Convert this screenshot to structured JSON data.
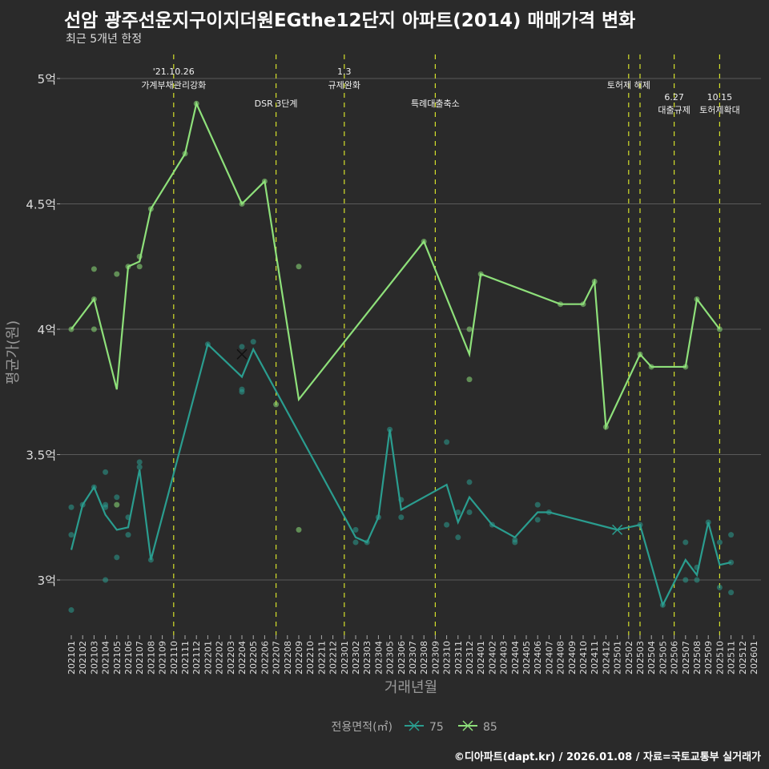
{
  "chart_data": {
    "type": "line",
    "title": "선암 광주선운지구이지더원EGthe12단지 아파트(2014) 매매가격 변화",
    "subtitle": "최근 5개년 한정",
    "xlabel": "거래년월",
    "ylabel": "평균가(원)",
    "caption": "©디아파트(dapt.kr) / 2026.01.08 / 자료=국토교통부 실거래가",
    "legend": {
      "title": "전용면적(㎡)",
      "position": "bottom",
      "entries": [
        "75",
        "85"
      ]
    },
    "colors": {
      "75": "#2a9d8f",
      "85": "#8ee07a",
      "event": "#d4e02a"
    },
    "y_ticks": [
      {
        "v": 3,
        "label": "3억"
      },
      {
        "v": 3.5,
        "label": "3.5억"
      },
      {
        "v": 4,
        "label": "4억"
      },
      {
        "v": 4.5,
        "label": "4.5억"
      },
      {
        "v": 5,
        "label": "5억"
      }
    ],
    "ylim": [
      2.8,
      5.05
    ],
    "x_start": "202101",
    "x_count": 61,
    "events": [
      {
        "m": 9,
        "lines": [
          "'21.10.26",
          "가계부채관리강화"
        ],
        "row": 0
      },
      {
        "m": 18,
        "lines": [
          "DSR 3단계"
        ],
        "row": 2
      },
      {
        "m": 24,
        "lines": [
          "1.3",
          "규제완화"
        ],
        "row": 0
      },
      {
        "m": 32,
        "lines": [
          "특례대출축소"
        ],
        "row": 2
      },
      {
        "m": 49,
        "lines": [
          "토허제 해제"
        ],
        "row": 1
      },
      {
        "m": 50,
        "lines": [],
        "row": 1
      },
      {
        "m": 53,
        "lines": [
          "6.27",
          "대출규제"
        ],
        "row": 3
      },
      {
        "m": 57,
        "lines": [
          "10.15",
          "토허제확대"
        ],
        "row": 3
      }
    ],
    "series": [
      {
        "name": "75",
        "line": [
          [
            0,
            3.12
          ],
          [
            1,
            3.3
          ],
          [
            2,
            3.37
          ],
          [
            3,
            3.26
          ],
          [
            4,
            3.2
          ],
          [
            5,
            3.21
          ],
          [
            6,
            3.44
          ],
          [
            7,
            3.08
          ],
          [
            12,
            3.94
          ],
          [
            15,
            3.81
          ],
          [
            16,
            3.92
          ],
          [
            25,
            3.17
          ],
          [
            26,
            3.15
          ],
          [
            27,
            3.25
          ],
          [
            28,
            3.6
          ],
          [
            29,
            3.28
          ],
          [
            33,
            3.38
          ],
          [
            34,
            3.23
          ],
          [
            35,
            3.33
          ],
          [
            37,
            3.22
          ],
          [
            39,
            3.17
          ],
          [
            41,
            3.27
          ],
          [
            42,
            3.27
          ],
          [
            48,
            3.2
          ],
          [
            50,
            3.22
          ],
          [
            52,
            2.9
          ],
          [
            54,
            3.08
          ],
          [
            55,
            3.02
          ],
          [
            56,
            3.23
          ],
          [
            57,
            3.06
          ],
          [
            58,
            3.07
          ]
        ],
        "points": [
          [
            0,
            3.29
          ],
          [
            0,
            3.18
          ],
          [
            0,
            2.88
          ],
          [
            1,
            3.3
          ],
          [
            2,
            3.37
          ],
          [
            3,
            3.43
          ],
          [
            3,
            3.3
          ],
          [
            3,
            3.29
          ],
          [
            3,
            3.0
          ],
          [
            4,
            3.33
          ],
          [
            4,
            3.09
          ],
          [
            5,
            3.25
          ],
          [
            5,
            3.18
          ],
          [
            6,
            3.47
          ],
          [
            6,
            3.45
          ],
          [
            7,
            3.08
          ],
          [
            12,
            3.94
          ],
          [
            15,
            3.93
          ],
          [
            15,
            3.76
          ],
          [
            15,
            3.75
          ],
          [
            16,
            3.95
          ],
          [
            25,
            3.2
          ],
          [
            25,
            3.15
          ],
          [
            26,
            3.15
          ],
          [
            27,
            3.25
          ],
          [
            28,
            3.6
          ],
          [
            29,
            3.32
          ],
          [
            29,
            3.25
          ],
          [
            33,
            3.55
          ],
          [
            33,
            3.22
          ],
          [
            34,
            3.27
          ],
          [
            34,
            3.17
          ],
          [
            35,
            3.39
          ],
          [
            35,
            3.27
          ],
          [
            37,
            3.22
          ],
          [
            39,
            3.16
          ],
          [
            39,
            3.15
          ],
          [
            41,
            3.3
          ],
          [
            41,
            3.24
          ],
          [
            42,
            3.27
          ],
          [
            50,
            3.22
          ],
          [
            52,
            2.9
          ],
          [
            54,
            3.15
          ],
          [
            54,
            3.0
          ],
          [
            55,
            3.05
          ],
          [
            55,
            3.0
          ],
          [
            56,
            3.23
          ],
          [
            57,
            3.15
          ],
          [
            57,
            2.97
          ],
          [
            58,
            3.18
          ],
          [
            58,
            3.07
          ],
          [
            58,
            2.95
          ]
        ],
        "x_marks": [
          [
            48,
            3.2
          ]
        ]
      },
      {
        "name": "85",
        "line": [
          [
            0,
            4.0
          ],
          [
            2,
            4.12
          ],
          [
            4,
            3.76
          ],
          [
            5,
            4.25
          ],
          [
            6,
            4.27
          ],
          [
            7,
            4.48
          ],
          [
            10,
            4.7
          ],
          [
            11,
            4.9
          ],
          [
            15,
            4.5
          ],
          [
            17,
            4.59
          ],
          [
            20,
            3.72
          ],
          [
            31,
            4.35
          ],
          [
            35,
            3.9
          ],
          [
            36,
            4.22
          ],
          [
            43,
            4.1
          ],
          [
            45,
            4.1
          ],
          [
            46,
            4.19
          ],
          [
            47,
            3.61
          ],
          [
            50,
            3.9
          ],
          [
            51,
            3.85
          ],
          [
            54,
            3.85
          ],
          [
            55,
            4.12
          ],
          [
            57,
            4.0
          ]
        ],
        "points": [
          [
            0,
            4.0
          ],
          [
            2,
            4.24
          ],
          [
            2,
            4.12
          ],
          [
            2,
            4.0
          ],
          [
            4,
            4.22
          ],
          [
            4,
            3.3
          ],
          [
            5,
            4.25
          ],
          [
            6,
            4.29
          ],
          [
            6,
            4.25
          ],
          [
            7,
            4.48
          ],
          [
            10,
            4.7
          ],
          [
            11,
            4.9
          ],
          [
            15,
            4.5
          ],
          [
            17,
            4.59
          ],
          [
            18,
            3.7
          ],
          [
            20,
            4.25
          ],
          [
            20,
            3.2
          ],
          [
            31,
            4.35
          ],
          [
            35,
            4.0
          ],
          [
            35,
            3.8
          ],
          [
            36,
            4.22
          ],
          [
            43,
            4.1
          ],
          [
            45,
            4.1
          ],
          [
            46,
            4.19
          ],
          [
            47,
            3.61
          ],
          [
            50,
            3.9
          ],
          [
            51,
            3.85
          ],
          [
            54,
            3.85
          ],
          [
            55,
            4.12
          ],
          [
            57,
            4.0
          ]
        ],
        "x_marks": [
          [
            15,
            3.9
          ]
        ]
      }
    ]
  }
}
